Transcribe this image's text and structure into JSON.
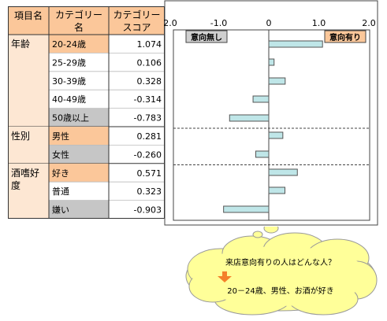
{
  "table": {
    "headers": [
      "項目名",
      "カテゴリー名",
      "カテゴリースコア"
    ],
    "header_lines": {
      "col1": [
        "項目名"
      ],
      "col2": [
        "カテゴリー",
        "名"
      ],
      "col3": [
        "カテゴリー",
        "スコア"
      ]
    },
    "groups": [
      {
        "label_lines": [
          "年齢"
        ],
        "rows": [
          {
            "category": "20-24歳",
            "score": "1.074",
            "fill": "#fbc79a"
          },
          {
            "category": "25-29歳",
            "score": "0.106",
            "fill": "#ffffff"
          },
          {
            "category": "30-39歳",
            "score": "0.328",
            "fill": "#ffffff"
          },
          {
            "category": "40-49歳",
            "score": "-0.314",
            "fill": "#ffffff"
          },
          {
            "category": "50歳以上",
            "score": "-0.783",
            "fill": "#c6c6c6"
          }
        ]
      },
      {
        "label_lines": [
          "性別"
        ],
        "rows": [
          {
            "category": "男性",
            "score": "0.281",
            "fill": "#fbc79a"
          },
          {
            "category": "女性",
            "score": "-0.260",
            "fill": "#c6c6c6"
          }
        ]
      },
      {
        "label_lines": [
          "酒嗜好",
          "度"
        ],
        "rows": [
          {
            "category": "好き",
            "score": "0.571",
            "fill": "#fbc79a"
          },
          {
            "category": "普通",
            "score": "0.323",
            "fill": "#ffffff"
          },
          {
            "category": "嫌い",
            "score": "-0.903",
            "fill": "#c6c6c6"
          }
        ]
      }
    ]
  },
  "chart_data": {
    "type": "bar",
    "orientation": "horizontal",
    "categories": [
      "20-24歳",
      "25-29歳",
      "30-39歳",
      "40-49歳",
      "50歳以上",
      "男性",
      "女性",
      "好き",
      "普通",
      "嫌い"
    ],
    "values": [
      1.074,
      0.106,
      0.328,
      -0.314,
      -0.783,
      0.281,
      -0.26,
      0.571,
      0.323,
      -0.903
    ],
    "x_ticks": [
      "-2.0",
      "-1.0",
      "0",
      "1.0",
      "2.0"
    ],
    "xlim": [
      -2.0,
      2.0
    ],
    "group_sizes": [
      5,
      2,
      3
    ],
    "negative_label": "意向無し",
    "positive_label": "意向有り",
    "grid": false
  },
  "callout": {
    "question": "来店意向有りの人はどんな人？",
    "answer": "20－24歳、男性、お酒が好き"
  },
  "colors": {
    "header_bg": "#fbc79a",
    "group_bg": "#fde7d3",
    "highlight": "#fbc79a",
    "low": "#c6c6c6",
    "bar_fill": "#bfe6e8",
    "bar_stroke": "#555555",
    "negative_box": "#d0d0d0",
    "positive_box": "#fbc79a",
    "bubble_fill": "#ffff99",
    "arrow": "#f4802a"
  }
}
